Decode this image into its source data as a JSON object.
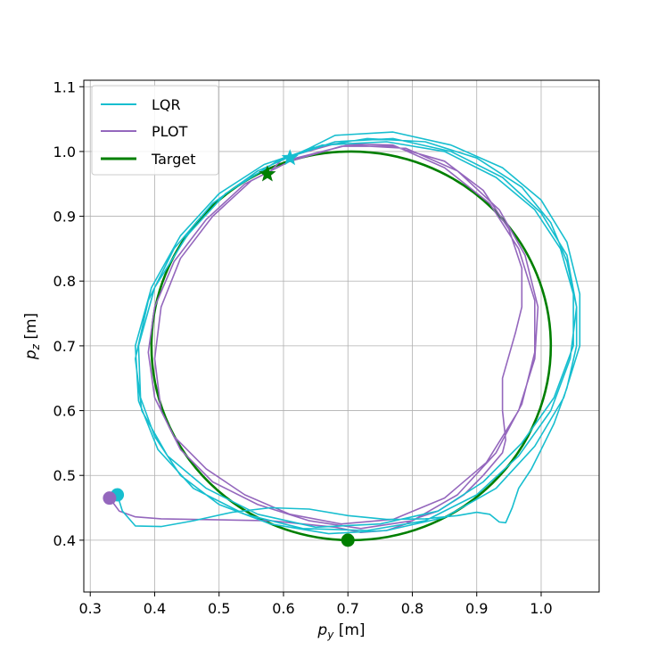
{
  "chart_data": {
    "type": "line",
    "title": "",
    "xlabel_base": "p",
    "xlabel_sub": "y",
    "xlabel_unit": " [m]",
    "ylabel_base": "p",
    "ylabel_sub": "z",
    "ylabel_unit": " [m]",
    "xlim": [
      0.29,
      1.09
    ],
    "ylim": [
      0.32,
      1.11
    ],
    "xticks": [
      0.3,
      0.4,
      0.5,
      0.6,
      0.7,
      0.8,
      0.9,
      1.0
    ],
    "xtick_labels": [
      "0.3",
      "0.4",
      "0.5",
      "0.6",
      "0.7",
      "0.8",
      "0.9",
      "1.0"
    ],
    "yticks": [
      0.4,
      0.5,
      0.6,
      0.7,
      0.8,
      0.9,
      1.0,
      1.1
    ],
    "ytick_labels": [
      "0.4",
      "0.5",
      "0.6",
      "0.7",
      "0.8",
      "0.9",
      "1.0",
      "1.1"
    ],
    "grid": true,
    "legend_position": "top-left",
    "series": [
      {
        "name": "LQR",
        "color": "#17becf",
        "start": [
          0.342,
          0.47
        ],
        "end": [
          0.61,
          0.99
        ],
        "points": [
          [
            0.342,
            0.47
          ],
          [
            0.35,
            0.445
          ],
          [
            0.37,
            0.422
          ],
          [
            0.41,
            0.421
          ],
          [
            0.46,
            0.43
          ],
          [
            0.52,
            0.443
          ],
          [
            0.58,
            0.45
          ],
          [
            0.64,
            0.448
          ],
          [
            0.7,
            0.438
          ],
          [
            0.76,
            0.432
          ],
          [
            0.82,
            0.433
          ],
          [
            0.87,
            0.438
          ],
          [
            0.9,
            0.443
          ],
          [
            0.92,
            0.44
          ],
          [
            0.935,
            0.428
          ],
          [
            0.945,
            0.427
          ],
          [
            0.955,
            0.45
          ],
          [
            0.965,
            0.48
          ],
          [
            0.985,
            0.51
          ],
          [
            1.0,
            0.54
          ],
          [
            1.02,
            0.58
          ],
          [
            1.04,
            0.635
          ],
          [
            1.055,
            0.7
          ],
          [
            1.055,
            0.76
          ],
          [
            1.04,
            0.83
          ],
          [
            1.015,
            0.89
          ],
          [
            0.97,
            0.945
          ],
          [
            0.9,
            0.99
          ],
          [
            0.82,
            1.015
          ],
          [
            0.73,
            1.02
          ],
          [
            0.64,
            1.005
          ],
          [
            0.56,
            0.97
          ],
          [
            0.49,
            0.92
          ],
          [
            0.43,
            0.85
          ],
          [
            0.39,
            0.77
          ],
          [
            0.37,
            0.68
          ],
          [
            0.38,
            0.6
          ],
          [
            0.42,
            0.53
          ],
          [
            0.48,
            0.48
          ],
          [
            0.56,
            0.44
          ],
          [
            0.65,
            0.42
          ],
          [
            0.75,
            0.425
          ],
          [
            0.84,
            0.445
          ],
          [
            0.91,
            0.49
          ],
          [
            0.97,
            0.55
          ],
          [
            1.02,
            0.62
          ],
          [
            1.05,
            0.7
          ],
          [
            1.05,
            0.78
          ],
          [
            1.03,
            0.85
          ],
          [
            0.99,
            0.91
          ],
          [
            0.93,
            0.96
          ],
          [
            0.85,
            1.0
          ],
          [
            0.76,
            1.015
          ],
          [
            0.66,
            1.01
          ],
          [
            0.57,
            0.98
          ],
          [
            0.5,
            0.935
          ],
          [
            0.44,
            0.87
          ],
          [
            0.395,
            0.79
          ],
          [
            0.37,
            0.7
          ],
          [
            0.375,
            0.615
          ],
          [
            0.405,
            0.54
          ],
          [
            0.46,
            0.48
          ],
          [
            0.54,
            0.44
          ],
          [
            0.63,
            0.418
          ],
          [
            0.73,
            0.415
          ],
          [
            0.82,
            0.43
          ],
          [
            0.9,
            0.47
          ],
          [
            0.965,
            0.53
          ],
          [
            1.015,
            0.6
          ],
          [
            1.045,
            0.68
          ],
          [
            1.055,
            0.76
          ],
          [
            1.04,
            0.84
          ],
          [
            1.0,
            0.905
          ],
          [
            0.94,
            0.96
          ],
          [
            0.86,
            1.0
          ],
          [
            0.77,
            1.02
          ],
          [
            0.68,
            1.015
          ],
          [
            0.59,
            0.985
          ],
          [
            0.51,
            0.935
          ],
          [
            0.45,
            0.87
          ],
          [
            0.4,
            0.79
          ],
          [
            0.375,
            0.7
          ],
          [
            0.378,
            0.62
          ],
          [
            0.4,
            0.56
          ],
          [
            0.44,
            0.5
          ],
          [
            0.5,
            0.455
          ],
          [
            0.58,
            0.425
          ],
          [
            0.67,
            0.41
          ],
          [
            0.76,
            0.415
          ],
          [
            0.85,
            0.435
          ],
          [
            0.93,
            0.48
          ],
          [
            0.99,
            0.545
          ],
          [
            1.035,
            0.62
          ],
          [
            1.06,
            0.7
          ],
          [
            1.06,
            0.78
          ],
          [
            1.04,
            0.86
          ],
          [
            1.0,
            0.925
          ],
          [
            0.94,
            0.975
          ],
          [
            0.86,
            1.01
          ],
          [
            0.77,
            1.03
          ],
          [
            0.68,
            1.025
          ],
          [
            0.61,
            0.99
          ]
        ]
      },
      {
        "name": "PLOT",
        "color": "#9467bd",
        "start": [
          0.33,
          0.465
        ],
        "end": [
          0.575,
          0.965
        ],
        "points": [
          [
            0.33,
            0.465
          ],
          [
            0.345,
            0.445
          ],
          [
            0.37,
            0.436
          ],
          [
            0.41,
            0.433
          ],
          [
            0.46,
            0.432
          ],
          [
            0.52,
            0.431
          ],
          [
            0.58,
            0.43
          ],
          [
            0.63,
            0.425
          ],
          [
            0.68,
            0.42
          ],
          [
            0.72,
            0.412
          ],
          [
            0.76,
            0.415
          ],
          [
            0.79,
            0.425
          ],
          [
            0.81,
            0.435
          ],
          [
            0.84,
            0.445
          ],
          [
            0.88,
            0.47
          ],
          [
            0.91,
            0.5
          ],
          [
            0.94,
            0.535
          ],
          [
            0.945,
            0.555
          ],
          [
            0.94,
            0.6
          ],
          [
            0.94,
            0.65
          ],
          [
            0.96,
            0.72
          ],
          [
            0.97,
            0.76
          ],
          [
            0.97,
            0.82
          ],
          [
            0.95,
            0.88
          ],
          [
            0.91,
            0.94
          ],
          [
            0.85,
            0.985
          ],
          [
            0.77,
            1.008
          ],
          [
            0.69,
            1.008
          ],
          [
            0.61,
            0.985
          ],
          [
            0.54,
            0.95
          ],
          [
            0.48,
            0.895
          ],
          [
            0.43,
            0.83
          ],
          [
            0.4,
            0.76
          ],
          [
            0.39,
            0.69
          ],
          [
            0.4,
            0.62
          ],
          [
            0.43,
            0.56
          ],
          [
            0.48,
            0.51
          ],
          [
            0.54,
            0.47
          ],
          [
            0.61,
            0.44
          ],
          [
            0.69,
            0.425
          ],
          [
            0.77,
            0.432
          ],
          [
            0.85,
            0.465
          ],
          [
            0.915,
            0.52
          ],
          [
            0.965,
            0.6
          ],
          [
            0.99,
            0.68
          ],
          [
            0.995,
            0.76
          ],
          [
            0.975,
            0.84
          ],
          [
            0.935,
            0.91
          ],
          [
            0.87,
            0.97
          ],
          [
            0.79,
            1.005
          ],
          [
            0.7,
            1.01
          ],
          [
            0.62,
            0.99
          ],
          [
            0.55,
            0.955
          ],
          [
            0.49,
            0.9
          ],
          [
            0.44,
            0.835
          ],
          [
            0.41,
            0.76
          ],
          [
            0.4,
            0.68
          ],
          [
            0.41,
            0.6
          ],
          [
            0.44,
            0.54
          ],
          [
            0.49,
            0.49
          ],
          [
            0.56,
            0.455
          ],
          [
            0.64,
            0.43
          ],
          [
            0.72,
            0.418
          ],
          [
            0.8,
            0.43
          ],
          [
            0.87,
            0.47
          ],
          [
            0.93,
            0.535
          ],
          [
            0.97,
            0.61
          ],
          [
            0.99,
            0.69
          ],
          [
            0.99,
            0.77
          ],
          [
            0.965,
            0.85
          ],
          [
            0.92,
            0.92
          ],
          [
            0.85,
            0.975
          ],
          [
            0.77,
            1.01
          ],
          [
            0.68,
            1.012
          ],
          [
            0.6,
            0.99
          ],
          [
            0.575,
            0.965
          ]
        ]
      },
      {
        "name": "Target",
        "color": "#007f00",
        "center": [
          0.705,
          0.7
        ],
        "radius_y": 0.31,
        "radius_z": 0.3,
        "start": [
          0.7,
          0.4
        ],
        "end": [
          0.575,
          0.965
        ]
      }
    ]
  }
}
